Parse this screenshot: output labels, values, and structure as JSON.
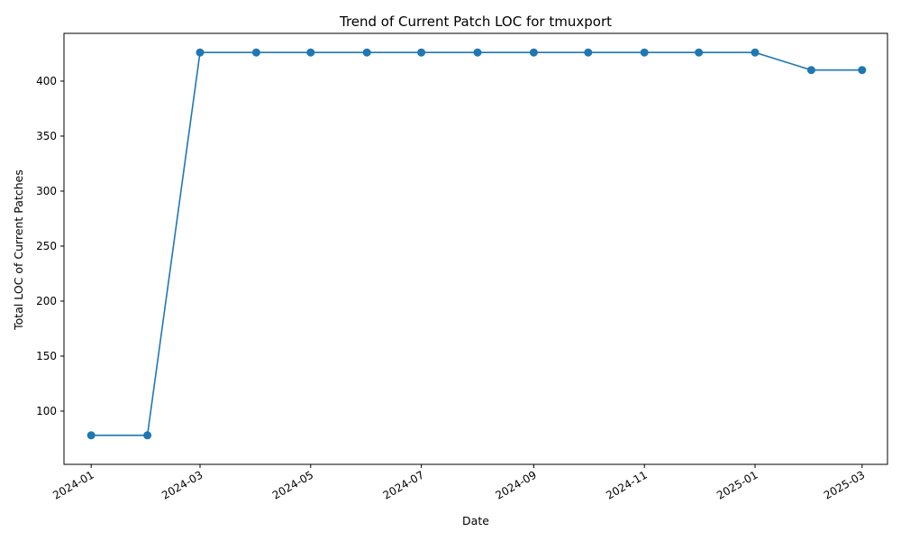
{
  "chart_data": {
    "type": "line",
    "title": "Trend of Current Patch LOC for tmuxport",
    "xlabel": "Date",
    "ylabel": "Total LOC of Current Patches",
    "x": [
      "2024-01-01",
      "2024-02-01",
      "2024-03-01",
      "2024-04-01",
      "2024-05-01",
      "2024-06-01",
      "2024-07-01",
      "2024-08-01",
      "2024-09-01",
      "2024-10-01",
      "2024-11-01",
      "2024-12-01",
      "2025-01-01",
      "2025-02-01",
      "2025-03-01"
    ],
    "series": [
      {
        "values": [
          78,
          78,
          426,
          426,
          426,
          426,
          426,
          426,
          426,
          426,
          426,
          426,
          426,
          410,
          410
        ]
      }
    ],
    "xlim": [
      "2023-12-17",
      "2025-03-15"
    ],
    "ylim": [
      51.6,
      443.4
    ],
    "x_ticks": [
      {
        "date": "2024-01-01",
        "label": "2024-01"
      },
      {
        "date": "2024-03-01",
        "label": "2024-03"
      },
      {
        "date": "2024-05-01",
        "label": "2024-05"
      },
      {
        "date": "2024-07-01",
        "label": "2024-07"
      },
      {
        "date": "2024-09-01",
        "label": "2024-09"
      },
      {
        "date": "2024-11-01",
        "label": "2024-11"
      },
      {
        "date": "2025-01-01",
        "label": "2025-01"
      },
      {
        "date": "2025-03-01",
        "label": "2025-03"
      }
    ],
    "y_ticks": [
      100,
      150,
      200,
      250,
      300,
      350,
      400
    ],
    "grid": false,
    "marker": "circle",
    "color": "#1f77b4"
  }
}
